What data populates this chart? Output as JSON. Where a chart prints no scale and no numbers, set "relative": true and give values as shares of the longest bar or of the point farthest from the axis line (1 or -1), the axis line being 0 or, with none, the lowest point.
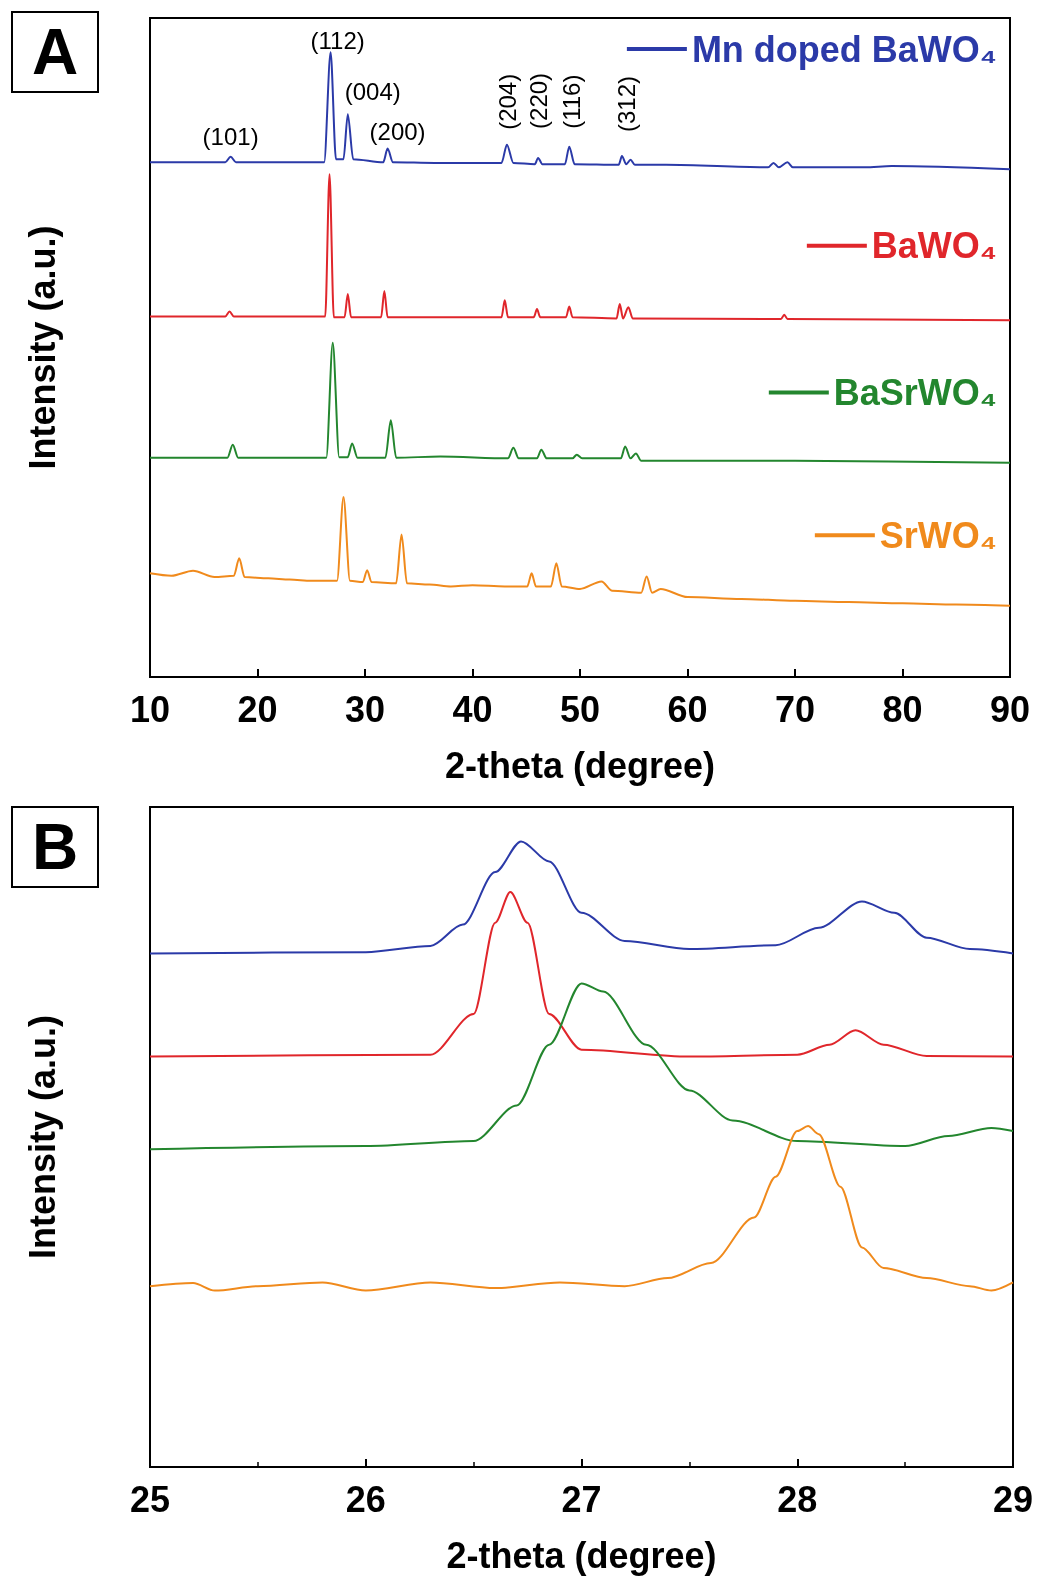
{
  "chart_data": [
    {
      "type": "line",
      "title": "A",
      "xlabel": "2-theta (degree)",
      "ylabel": "Intensity (a.u.)",
      "relative": true,
      "xlim": [
        10,
        90
      ],
      "xticks": [
        10,
        20,
        30,
        40,
        50,
        60,
        70,
        80,
        90
      ],
      "legend": "right",
      "annotations": [
        "(101)",
        "(112)",
        "(004)",
        "(200)",
        "(204)",
        "(220)",
        "(116)",
        "(312)"
      ],
      "series": [
        {
          "name": "Mn doped BaWO₄",
          "color": "#2b3aa8",
          "x": [
            10,
            17,
            17.5,
            18,
            26.2,
            26.8,
            27.3,
            28,
            28.4,
            28.9,
            31.7,
            32.1,
            32.6,
            36.5,
            42.7,
            43.2,
            43.8,
            45.8,
            46.1,
            46.5,
            48.6,
            49,
            49.5,
            53.6,
            53.9,
            54.3,
            54.7,
            55.1,
            58,
            67.5,
            68,
            68.5,
            69.3,
            69.8,
            76.5,
            79,
            90
          ],
          "values": [
            0.824,
            0.824,
            0.833,
            0.824,
            0.824,
            1.0,
            0.829,
            0.829,
            0.901,
            0.829,
            0.824,
            0.846,
            0.824,
            0.823,
            0.823,
            0.852,
            0.823,
            0.821,
            0.831,
            0.821,
            0.821,
            0.849,
            0.821,
            0.82,
            0.834,
            0.821,
            0.828,
            0.82,
            0.82,
            0.816,
            0.823,
            0.816,
            0.824,
            0.816,
            0.816,
            0.818,
            0.813
          ]
        },
        {
          "name": "BaWO₄",
          "color": "#e0262b",
          "x": [
            10,
            17,
            17.4,
            17.8,
            26.3,
            26.7,
            27.1,
            28.1,
            28.4,
            28.7,
            31.5,
            31.8,
            32.1,
            42.7,
            43,
            43.3,
            45.7,
            46,
            46.3,
            48.7,
            49,
            49.3,
            53.4,
            53.7,
            54,
            54.5,
            54.9,
            68.7,
            69,
            69.3,
            90
          ],
          "values": [
            0.577,
            0.577,
            0.585,
            0.577,
            0.577,
            0.805,
            0.576,
            0.576,
            0.613,
            0.576,
            0.576,
            0.618,
            0.576,
            0.576,
            0.603,
            0.576,
            0.576,
            0.589,
            0.576,
            0.576,
            0.593,
            0.576,
            0.574,
            0.597,
            0.574,
            0.592,
            0.574,
            0.573,
            0.58,
            0.573,
            0.571
          ]
        },
        {
          "name": "BaSrWO₄",
          "color": "#23862e",
          "x": [
            10,
            17.2,
            17.7,
            18.2,
            26.4,
            27,
            27.6,
            28.4,
            28.8,
            29.3,
            31.9,
            32.4,
            32.9,
            37,
            43.3,
            43.8,
            44.3,
            46,
            46.4,
            46.9,
            49.3,
            49.7,
            50.2,
            53.8,
            54.2,
            54.7,
            55.2,
            55.7,
            70,
            90
          ],
          "values": [
            0.351,
            0.351,
            0.372,
            0.351,
            0.351,
            0.535,
            0.352,
            0.352,
            0.374,
            0.351,
            0.351,
            0.411,
            0.351,
            0.353,
            0.35,
            0.367,
            0.35,
            0.35,
            0.364,
            0.35,
            0.35,
            0.356,
            0.35,
            0.35,
            0.369,
            0.35,
            0.358,
            0.346,
            0.346,
            0.343
          ]
        },
        {
          "name": "SrWO₄",
          "color": "#f08a1c",
          "x": [
            10,
            12,
            14,
            16,
            17.8,
            18.3,
            18.8,
            21,
            23,
            25,
            27.4,
            28,
            28.6,
            29.8,
            30.2,
            30.6,
            32.9,
            33.4,
            33.9,
            36,
            38,
            40,
            43,
            45.1,
            45.5,
            45.9,
            47.3,
            47.8,
            48.3,
            50,
            52,
            53,
            55.7,
            56.2,
            56.7,
            57.5,
            60,
            65,
            70,
            75,
            80,
            85,
            90
          ],
          "values": [
            0.166,
            0.162,
            0.17,
            0.16,
            0.162,
            0.19,
            0.16,
            0.158,
            0.156,
            0.154,
            0.154,
            0.288,
            0.154,
            0.152,
            0.171,
            0.152,
            0.15,
            0.228,
            0.15,
            0.148,
            0.145,
            0.147,
            0.145,
            0.145,
            0.166,
            0.145,
            0.145,
            0.182,
            0.145,
            0.141,
            0.153,
            0.138,
            0.135,
            0.161,
            0.135,
            0.141,
            0.128,
            0.125,
            0.122,
            0.12,
            0.118,
            0.116,
            0.114
          ]
        }
      ]
    },
    {
      "type": "line",
      "title": "B",
      "xlabel": "2-theta (degree)",
      "ylabel": "Intensity (a.u.)",
      "relative": true,
      "xlim": [
        25,
        29
      ],
      "xticks": [
        25,
        26,
        27,
        28,
        29
      ],
      "series": [
        {
          "color": "#2b3aa8",
          "x": [
            25,
            26,
            26.3,
            26.45,
            26.6,
            26.72,
            26.85,
            27,
            27.2,
            27.5,
            27.9,
            28.1,
            28.3,
            28.45,
            28.6,
            28.8,
            29
          ],
          "values": [
            0.821,
            0.823,
            0.833,
            0.867,
            0.951,
            1.0,
            0.968,
            0.886,
            0.841,
            0.828,
            0.834,
            0.862,
            0.904,
            0.886,
            0.846,
            0.828,
            0.821
          ]
        },
        {
          "color": "#e0262b",
          "x": [
            25,
            26.3,
            26.5,
            26.6,
            26.67,
            26.75,
            26.85,
            27,
            27.5,
            28,
            28.15,
            28.27,
            28.4,
            28.6,
            29
          ],
          "values": [
            0.656,
            0.659,
            0.724,
            0.87,
            0.919,
            0.87,
            0.724,
            0.667,
            0.656,
            0.659,
            0.675,
            0.698,
            0.675,
            0.657,
            0.656
          ]
        },
        {
          "color": "#23862e",
          "x": [
            25,
            26,
            26.5,
            26.7,
            26.85,
            27,
            27.1,
            27.3,
            27.5,
            27.7,
            28,
            28.5,
            28.7,
            28.9,
            29
          ],
          "values": [
            0.508,
            0.513,
            0.521,
            0.578,
            0.675,
            0.773,
            0.76,
            0.675,
            0.602,
            0.554,
            0.521,
            0.513,
            0.529,
            0.542,
            0.537
          ]
        },
        {
          "color": "#f08a1c",
          "x": [
            25,
            25.2,
            25.3,
            25.5,
            25.8,
            26,
            26.3,
            26.6,
            26.9,
            27.2,
            27.4,
            27.6,
            27.8,
            27.9,
            28,
            28.05,
            28.1,
            28.2,
            28.3,
            28.4,
            28.6,
            28.8,
            28.9,
            29
          ],
          "values": [
            0.289,
            0.294,
            0.282,
            0.289,
            0.295,
            0.282,
            0.295,
            0.286,
            0.295,
            0.289,
            0.302,
            0.326,
            0.399,
            0.464,
            0.537,
            0.545,
            0.532,
            0.448,
            0.351,
            0.318,
            0.302,
            0.289,
            0.282,
            0.295
          ]
        }
      ]
    }
  ]
}
